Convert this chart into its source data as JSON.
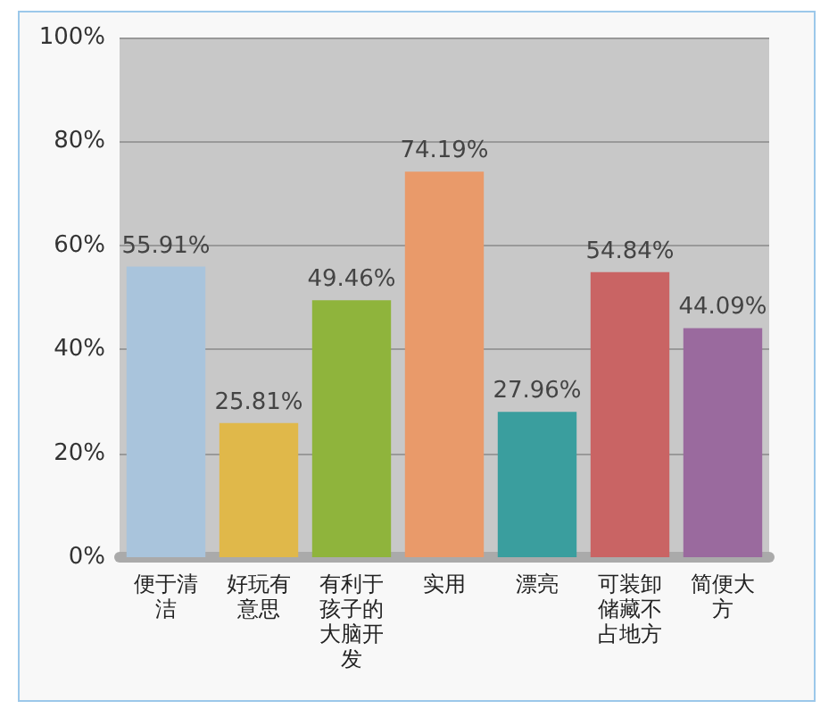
{
  "chart_data": {
    "type": "bar",
    "categories": [
      "便于清洁",
      "好玩有意思",
      "有利于孩子的大脑开发",
      "实用",
      "漂亮",
      "可装卸储藏不占地方",
      "简便大方"
    ],
    "values": [
      55.91,
      25.81,
      49.46,
      74.19,
      27.96,
      54.84,
      44.09
    ],
    "value_labels": [
      "55.91%",
      "25.81%",
      "49.46%",
      "74.19%",
      "27.96%",
      "54.84%",
      "44.09%"
    ],
    "colors": [
      "#a9c4dc",
      "#e0b84a",
      "#8fb43c",
      "#e99a6a",
      "#3a9e9e",
      "#c96464",
      "#9a6a9e"
    ],
    "ylim": [
      0,
      100
    ],
    "yticks": [
      {
        "value": 0,
        "label": "0%"
      },
      {
        "value": 20,
        "label": "20%"
      },
      {
        "value": 40,
        "label": "40%"
      },
      {
        "value": 60,
        "label": "60%"
      },
      {
        "value": 80,
        "label": "80%"
      },
      {
        "value": 100,
        "label": "100%"
      }
    ],
    "grid": "y"
  }
}
